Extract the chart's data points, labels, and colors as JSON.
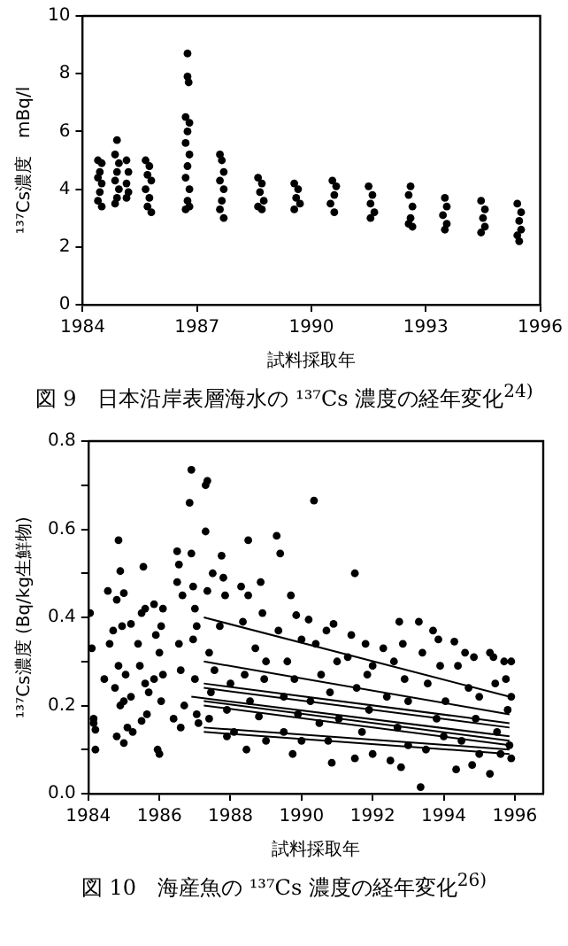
{
  "chart_data": [
    {
      "type": "scatter",
      "title": "図 9　日本沿岸表層海水の ¹³⁷Cs 濃度の経年変化$^{24)}$",
      "xlabel": "試料採取年",
      "ylabel": "¹³⁷Cs濃度　mBq/l",
      "xlim": [
        1984,
        1996
      ],
      "xticks": [
        1984,
        1987,
        1990,
        1993,
        1996
      ],
      "ylim": [
        0,
        10
      ],
      "yticks": [
        0,
        2,
        4,
        6,
        8,
        10
      ],
      "grid": false,
      "legend": false,
      "series": [
        {
          "marker": "circle",
          "color": "#000000",
          "x": [
            1984.4,
            1984.5,
            1984.45,
            1984.4,
            1984.5,
            1984.45,
            1984.4,
            1984.5,
            1984.9,
            1984.85,
            1984.95,
            1984.9,
            1984.85,
            1984.95,
            1984.9,
            1984.85,
            1985.15,
            1985.2,
            1985.15,
            1985.2,
            1985.15,
            1985.65,
            1985.75,
            1985.7,
            1985.8,
            1985.65,
            1985.75,
            1985.7,
            1985.8,
            1986.75,
            1986.75,
            1986.78,
            1986.7,
            1986.8,
            1986.75,
            1986.7,
            1986.8,
            1986.75,
            1986.7,
            1986.8,
            1986.75,
            1986.7,
            1986.8,
            1987.6,
            1987.65,
            1987.7,
            1987.6,
            1987.7,
            1987.65,
            1987.6,
            1987.7,
            1988.6,
            1988.7,
            1988.65,
            1988.75,
            1988.6,
            1988.7,
            1989.55,
            1989.65,
            1989.6,
            1989.7,
            1989.55,
            1990.55,
            1990.65,
            1990.6,
            1990.5,
            1990.6,
            1991.5,
            1991.6,
            1991.55,
            1991.65,
            1991.55,
            1992.6,
            1992.55,
            1992.65,
            1992.6,
            1992.55,
            1992.65,
            1993.5,
            1993.55,
            1993.45,
            1993.55,
            1993.5,
            1994.45,
            1994.55,
            1994.5,
            1994.55,
            1994.45,
            1995.4,
            1995.5,
            1995.45,
            1995.5,
            1995.4,
            1995.45
          ],
          "values": [
            5.0,
            4.9,
            4.6,
            4.4,
            4.2,
            3.9,
            3.6,
            3.4,
            5.7,
            5.2,
            4.9,
            4.6,
            4.3,
            4.0,
            3.7,
            3.5,
            5.0,
            4.6,
            4.2,
            3.9,
            3.7,
            5.0,
            4.8,
            4.5,
            4.3,
            4.0,
            3.7,
            3.4,
            3.2,
            8.7,
            7.9,
            7.7,
            6.5,
            6.3,
            6.0,
            5.6,
            5.2,
            4.8,
            4.4,
            4.0,
            3.6,
            3.3,
            3.4,
            5.2,
            5.0,
            4.6,
            4.3,
            4.0,
            3.6,
            3.3,
            3.0,
            4.4,
            4.2,
            3.9,
            3.6,
            3.4,
            3.3,
            4.2,
            4.0,
            3.7,
            3.5,
            3.3,
            4.3,
            4.1,
            3.8,
            3.5,
            3.2,
            4.1,
            3.8,
            3.5,
            3.2,
            3.0,
            4.1,
            3.8,
            3.4,
            3.0,
            2.8,
            2.7,
            3.7,
            3.4,
            3.1,
            2.8,
            2.6,
            3.6,
            3.3,
            3.0,
            2.7,
            2.5,
            3.5,
            3.2,
            2.9,
            2.6,
            2.4,
            2.2
          ]
        }
      ]
    },
    {
      "type": "scatter",
      "title": "図 10　海産魚の ¹³⁷Cs 濃度の経年変化$^{26)}$",
      "xlabel": "試料採取年",
      "ylabel": "¹³⁷Cs濃度 (Bq/kg生鮮物)",
      "xlim": [
        1984,
        1996.8
      ],
      "xticks": [
        1984,
        1986,
        1988,
        1990,
        1992,
        1994,
        1996
      ],
      "ylim": [
        0,
        0.8
      ],
      "yticks": [
        {
          "value": 0,
          "label": "0.0"
        },
        {
          "value": 0.1,
          "label": null
        },
        {
          "value": 0.2,
          "label": "0.2"
        },
        {
          "value": 0.3,
          "label": null
        },
        {
          "value": 0.4,
          "label": "0.4"
        },
        {
          "value": 0.5,
          "label": null
        },
        {
          "value": 0.6,
          "label": "0.6"
        },
        {
          "value": 0.7,
          "label": null
        },
        {
          "value": 0.8,
          "label": "0.8"
        }
      ],
      "grid": false,
      "legend": false,
      "series": [
        {
          "marker": "circle",
          "color": "#000000",
          "x": [
            1984.05,
            1984.1,
            1984.15,
            1984.15,
            1984.2,
            1984.2,
            1984.45,
            1984.55,
            1984.6,
            1984.7,
            1984.75,
            1984.8,
            1984.8,
            1984.85,
            1984.85,
            1984.9,
            1984.9,
            1984.95,
            1985.0,
            1985.0,
            1985.0,
            1985.05,
            1985.1,
            1985.2,
            1985.2,
            1985.25,
            1985.4,
            1985.45,
            1985.5,
            1985.5,
            1985.55,
            1985.6,
            1985.6,
            1985.65,
            1985.7,
            1985.85,
            1985.85,
            1985.9,
            1985.95,
            1986.0,
            1986.0,
            1986.05,
            1986.1,
            1986.1,
            1986.05,
            1986.4,
            1986.5,
            1986.5,
            1986.55,
            1986.55,
            1986.6,
            1986.6,
            1986.65,
            1986.7,
            1986.85,
            1986.9,
            1986.9,
            1986.95,
            1986.95,
            1987.0,
            1987.0,
            1987.05,
            1987.05,
            1987.1,
            1987.3,
            1987.35,
            1987.3,
            1987.35,
            1987.4,
            1987.4,
            1987.45,
            1987.5,
            1987.55,
            1987.7,
            1987.75,
            1987.8,
            1987.85,
            1987.9,
            1987.9,
            1988.0,
            1988.1,
            1988.3,
            1988.35,
            1988.4,
            1988.45,
            1988.5,
            1988.5,
            1988.55,
            1988.7,
            1988.8,
            1988.85,
            1988.9,
            1988.95,
            1989.0,
            1989.0,
            1989.3,
            1989.35,
            1989.4,
            1989.5,
            1989.5,
            1989.6,
            1989.7,
            1989.75,
            1989.8,
            1989.85,
            1989.9,
            1990.0,
            1990.0,
            1990.2,
            1990.25,
            1990.35,
            1990.4,
            1990.5,
            1990.55,
            1990.7,
            1990.75,
            1990.8,
            1990.85,
            1990.9,
            1991.0,
            1991.05,
            1991.3,
            1991.4,
            1991.5,
            1991.5,
            1991.55,
            1991.7,
            1991.8,
            1991.85,
            1991.9,
            1992.0,
            1992.0,
            1992.3,
            1992.4,
            1992.5,
            1992.6,
            1992.7,
            1992.75,
            1992.8,
            1992.85,
            1992.9,
            1993.0,
            1993.0,
            1993.3,
            1993.35,
            1993.4,
            1993.5,
            1993.55,
            1993.7,
            1993.8,
            1993.85,
            1993.9,
            1994.0,
            1994.05,
            1994.3,
            1994.35,
            1994.4,
            1994.5,
            1994.6,
            1994.7,
            1994.8,
            1994.85,
            1994.9,
            1995.0,
            1995.0,
            1995.3,
            1995.3,
            1995.4,
            1995.45,
            1995.5,
            1995.6,
            1995.7,
            1995.75,
            1995.8,
            1995.85,
            1995.9,
            1995.9,
            1995.9
          ],
          "values": [
            0.41,
            0.33,
            0.17,
            0.16,
            0.1,
            0.145,
            0.26,
            0.46,
            0.34,
            0.37,
            0.24,
            0.13,
            0.44,
            0.575,
            0.29,
            0.2,
            0.505,
            0.38,
            0.455,
            0.21,
            0.115,
            0.27,
            0.15,
            0.22,
            0.385,
            0.14,
            0.34,
            0.29,
            0.41,
            0.165,
            0.515,
            0.25,
            0.42,
            0.18,
            0.23,
            0.43,
            0.26,
            0.36,
            0.1,
            0.09,
            0.32,
            0.21,
            0.27,
            0.42,
            0.38,
            0.17,
            0.48,
            0.55,
            0.52,
            0.34,
            0.28,
            0.15,
            0.45,
            0.2,
            0.66,
            0.735,
            0.545,
            0.35,
            0.47,
            0.26,
            0.42,
            0.18,
            0.38,
            0.16,
            0.7,
            0.71,
            0.595,
            0.46,
            0.32,
            0.17,
            0.23,
            0.5,
            0.28,
            0.38,
            0.54,
            0.49,
            0.45,
            0.19,
            0.13,
            0.25,
            0.14,
            0.47,
            0.39,
            0.27,
            0.1,
            0.575,
            0.45,
            0.21,
            0.33,
            0.175,
            0.48,
            0.41,
            0.26,
            0.12,
            0.3,
            0.585,
            0.37,
            0.545,
            0.22,
            0.14,
            0.3,
            0.45,
            0.09,
            0.26,
            0.405,
            0.18,
            0.35,
            0.12,
            0.395,
            0.21,
            0.665,
            0.34,
            0.16,
            0.27,
            0.37,
            0.12,
            0.23,
            0.07,
            0.385,
            0.3,
            0.17,
            0.31,
            0.36,
            0.5,
            0.08,
            0.24,
            0.14,
            0.34,
            0.27,
            0.19,
            0.09,
            0.29,
            0.33,
            0.22,
            0.075,
            0.3,
            0.15,
            0.39,
            0.06,
            0.34,
            0.26,
            0.11,
            0.21,
            0.39,
            0.015,
            0.32,
            0.1,
            0.25,
            0.37,
            0.17,
            0.35,
            0.29,
            0.13,
            0.21,
            0.345,
            0.055,
            0.29,
            0.12,
            0.32,
            0.24,
            0.065,
            0.31,
            0.17,
            0.09,
            0.22,
            0.32,
            0.045,
            0.31,
            0.25,
            0.14,
            0.09,
            0.3,
            0.26,
            0.19,
            0.11,
            0.3,
            0.08,
            0.22
          ]
        },
        {
          "type": "line",
          "color": "#000000",
          "x": [
            1987.25,
            1995.85
          ],
          "values": [
            0.4,
            0.22
          ]
        },
        {
          "type": "line",
          "color": "#000000",
          "x": [
            1987.25,
            1995.85
          ],
          "values": [
            0.3,
            0.18
          ]
        },
        {
          "type": "line",
          "color": "#000000",
          "x": [
            1987.25,
            1995.85
          ],
          "values": [
            0.25,
            0.16
          ]
        },
        {
          "type": "line",
          "color": "#000000",
          "x": [
            1987.25,
            1995.85
          ],
          "values": [
            0.24,
            0.15
          ]
        },
        {
          "type": "line",
          "color": "#000000",
          "x": [
            1986.9,
            1995.85
          ],
          "values": [
            0.22,
            0.13
          ]
        },
        {
          "type": "line",
          "color": "#000000",
          "x": [
            1987.25,
            1995.85
          ],
          "values": [
            0.21,
            0.12
          ]
        },
        {
          "type": "line",
          "color": "#000000",
          "x": [
            1987.25,
            1995.85
          ],
          "values": [
            0.2,
            0.11
          ]
        },
        {
          "type": "line",
          "color": "#000000",
          "x": [
            1987.25,
            1995.85
          ],
          "values": [
            0.15,
            0.1
          ]
        },
        {
          "type": "line",
          "color": "#000000",
          "x": [
            1987.25,
            1995.85
          ],
          "values": [
            0.14,
            0.09
          ]
        }
      ]
    }
  ]
}
